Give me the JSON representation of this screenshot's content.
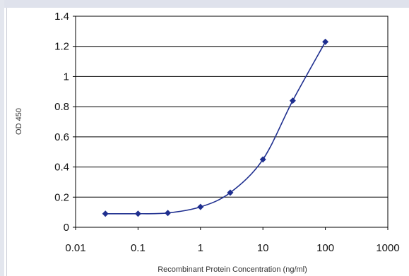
{
  "chart_data": {
    "type": "line",
    "title": "",
    "xlabel": "Recombinant Protein Concentration (ng/ml)",
    "ylabel": "OD 450",
    "x_scale": "log",
    "xlim": [
      0.01,
      1000
    ],
    "ylim": [
      0,
      1.4
    ],
    "grid": "horizontal",
    "legend": "none",
    "x_ticks": [
      "0.01",
      "0.1",
      "1",
      "10",
      "100",
      "1000"
    ],
    "y_ticks": [
      "0",
      "0.2",
      "0.4",
      "0.6",
      "0.8",
      "1",
      "1.2",
      "1.4"
    ],
    "series": [
      {
        "color": "#1f2f8f",
        "x": [
          0.03,
          0.1,
          0.3,
          1,
          3,
          10,
          30,
          100
        ],
        "y": [
          0.09,
          0.09,
          0.095,
          0.135,
          0.23,
          0.45,
          0.84,
          1.23
        ]
      }
    ]
  }
}
